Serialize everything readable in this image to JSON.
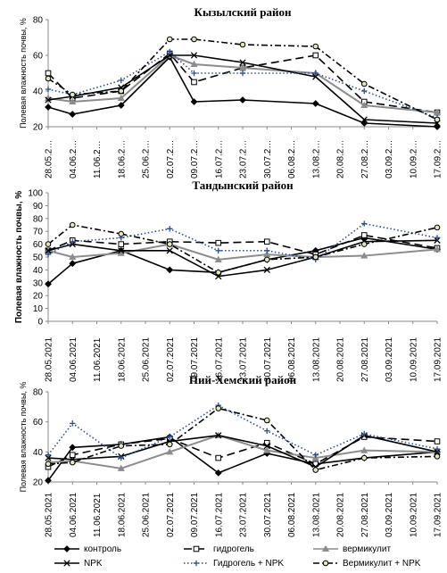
{
  "chart_data": [
    {
      "type": "line",
      "title": "Кызылский район",
      "ylabel": "Полевая влажность почвы, %",
      "xlabel": "",
      "ylim": [
        20,
        80
      ],
      "yticks": [
        20,
        40,
        60,
        80
      ],
      "grid": false,
      "categories": [
        "28.05.2…",
        "04.06.2…",
        "11.06.2…",
        "18.06.2…",
        "25.06.2…",
        "02.07.2…",
        "09.07.2…",
        "16.07.2…",
        "23.07.2…",
        "30.07.2…",
        "06.08.2…",
        "13.08.2…",
        "20.08.2…",
        "27.08.2…",
        "03.09.2…",
        "10.09.2…",
        "17.09.2…"
      ],
      "x": [
        0,
        1,
        3,
        5,
        6,
        8,
        11,
        13,
        16
      ],
      "series": [
        {
          "name": "контроль",
          "values": [
            31,
            27,
            32,
            59,
            34,
            35,
            33,
            22,
            20
          ]
        },
        {
          "name": "гидрогель",
          "values": [
            50,
            36,
            40,
            61,
            45,
            53,
            60,
            34,
            28
          ]
        },
        {
          "name": "вермикулит",
          "values": [
            36,
            34,
            36,
            60,
            55,
            53,
            50,
            32,
            28
          ]
        },
        {
          "name": "NPK",
          "values": [
            35,
            37,
            42,
            60,
            60,
            56,
            48,
            24,
            22
          ]
        },
        {
          "name": "Гидрогель + NPK",
          "values": [
            41,
            38,
            46,
            62,
            50,
            50,
            50,
            40,
            25
          ]
        },
        {
          "name": "Вермикулит + NPK",
          "values": [
            47,
            38,
            40,
            69,
            69,
            66,
            65,
            44,
            24
          ]
        }
      ]
    },
    {
      "type": "line",
      "title": "Тандынский район",
      "ylabel": "Полевая влажность почвы, %",
      "xlabel": "",
      "ylim": [
        0,
        100
      ],
      "yticks": [
        0,
        10,
        20,
        30,
        40,
        50,
        60,
        70,
        80,
        90,
        100
      ],
      "grid": false,
      "categories": [
        "28.05.2021",
        "04.06.2021",
        "11.06.2021",
        "18.06.2021",
        "25.06.2021",
        "02.07.2021",
        "09.07.2021",
        "16.07.2021",
        "23.07.2021",
        "30.07.2021",
        "06.08.2021",
        "13.08.2021",
        "20.08.2021",
        "27.08.2021",
        "03.09.2021",
        "10.09.2021",
        "17.09.2021"
      ],
      "x": [
        0,
        1,
        3,
        5,
        7,
        9,
        11,
        13,
        16
      ],
      "series": [
        {
          "name": "контроль",
          "values": [
            29,
            45,
            55,
            40,
            38,
            48,
            55,
            65,
            56
          ]
        },
        {
          "name": "гидрогель",
          "values": [
            55,
            63,
            60,
            62,
            61,
            62,
            52,
            67,
            57
          ]
        },
        {
          "name": "вермикулит",
          "values": [
            55,
            50,
            53,
            60,
            48,
            52,
            50,
            51,
            56
          ]
        },
        {
          "name": "NPK",
          "values": [
            55,
            60,
            55,
            55,
            35,
            40,
            50,
            62,
            63
          ]
        },
        {
          "name": "Гидрогель + NPK",
          "values": [
            52,
            62,
            65,
            72,
            55,
            55,
            48,
            76,
            65
          ]
        },
        {
          "name": "Вермикулит + NPK",
          "values": [
            60,
            75,
            68,
            60,
            38,
            48,
            50,
            60,
            73
          ]
        }
      ]
    },
    {
      "type": "line",
      "title": "Пий-Хемский район",
      "ylabel": "Полевая влажность почвы, %",
      "xlabel": "",
      "ylim": [
        20,
        80
      ],
      "yticks": [
        20,
        40,
        60,
        80
      ],
      "grid": false,
      "categories": [
        "28.05.2021",
        "04.06.2021",
        "11.06.2021",
        "18.06.2021",
        "25.06.2021",
        "02.07.2021",
        "09.07.2021",
        "16.07.2021",
        "23.07.2021",
        "30.07.2021",
        "06.08.2021",
        "13.08.2021",
        "20.08.2021",
        "27.08.2021",
        "03.09.2021",
        "10.09.2021",
        "17.09.2021"
      ],
      "x": [
        0,
        1,
        3,
        5,
        7,
        9,
        11,
        13,
        16
      ],
      "series": [
        {
          "name": "контроль",
          "values": [
            21,
            43,
            45,
            50,
            26,
            39,
            32,
            36,
            40
          ]
        },
        {
          "name": "гидрогель",
          "values": [
            30,
            38,
            45,
            49,
            36,
            46,
            32,
            50,
            47
          ]
        },
        {
          "name": "вермикулит",
          "values": [
            33,
            34,
            29,
            40,
            51,
            41,
            36,
            41,
            40
          ]
        },
        {
          "name": "NPK",
          "values": [
            36,
            35,
            37,
            47,
            51,
            44,
            30,
            51,
            40
          ]
        },
        {
          "name": "Гидрогель + NPK",
          "values": [
            38,
            59,
            36,
            50,
            71,
            54,
            38,
            52,
            42
          ]
        },
        {
          "name": "Вермикулит + NPK",
          "values": [
            32,
            33,
            44,
            45,
            69,
            61,
            28,
            36,
            37
          ]
        }
      ]
    }
  ],
  "series_style": [
    {
      "color": "#000000",
      "dash": "",
      "marker": "diamond",
      "fill": "#000000"
    },
    {
      "color": "#000000",
      "dash": "9 5",
      "marker": "square",
      "fill": "#ffffff"
    },
    {
      "color": "#8c8c8c",
      "dash": "",
      "marker": "triangle",
      "fill": "#8c8c8c"
    },
    {
      "color": "#000000",
      "dash": "",
      "marker": "x",
      "fill": "none"
    },
    {
      "color": "#2f4f8f",
      "dash": "1.5 2.5",
      "marker": "plus",
      "fill": "none"
    },
    {
      "color": "#000000",
      "dash": "7 3 2 3",
      "marker": "circle",
      "fill": "#dfe9c0"
    }
  ],
  "legend": [
    "контроль",
    "гидрогель",
    "вермикулит",
    "NPK",
    "Гидрогель + NPK",
    "Вермикулит + NPK"
  ]
}
